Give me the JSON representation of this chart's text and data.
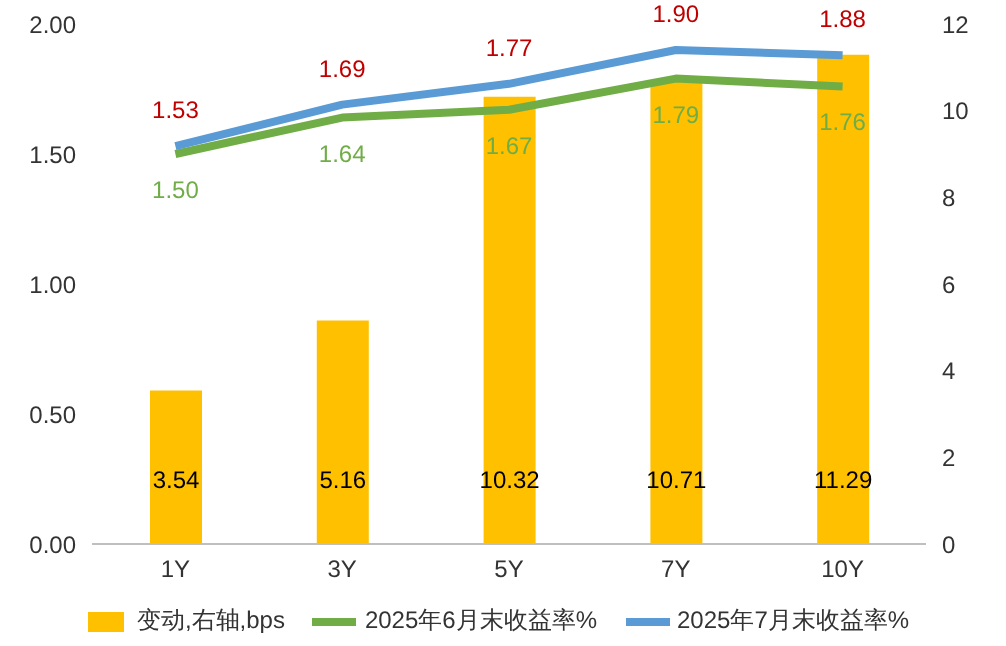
{
  "chart_data": {
    "type": "bar",
    "categories": [
      "1Y",
      "3Y",
      "5Y",
      "7Y",
      "10Y"
    ],
    "series": [
      {
        "name": "变动,右轴,bps",
        "axis": "y2",
        "color": "#ffc000",
        "values": [
          3.54,
          5.16,
          10.32,
          10.71,
          11.29
        ]
      },
      {
        "name": "2025年6月末收益率%",
        "type": "line",
        "color": "#70ad47",
        "values": [
          1.5,
          1.64,
          1.67,
          1.79,
          1.76
        ],
        "value_labels": [
          "1.50",
          "1.64",
          "1.67",
          "1.79",
          "1.76"
        ]
      },
      {
        "name": "2025年7月末收益率%",
        "type": "line",
        "color": "#5b9bd5",
        "values": [
          1.53,
          1.69,
          1.77,
          1.9,
          1.88
        ],
        "value_labels": [
          "1.53",
          "1.69",
          "1.77",
          "1.90",
          "1.88"
        ]
      }
    ],
    "ylim": [
      0,
      2
    ],
    "yticks": [
      {
        "value": 0,
        "label": "0.00"
      },
      {
        "value": 0.5,
        "label": "0.50"
      },
      {
        "value": 1,
        "label": "1.00"
      },
      {
        "value": 1.5,
        "label": "1.50"
      },
      {
        "value": 2,
        "label": "2.00"
      }
    ],
    "y2lim": [
      0,
      12
    ],
    "y2ticks": [
      0,
      2,
      4,
      6,
      8,
      10,
      12
    ],
    "data_labels": true,
    "legend": "bottom",
    "grid": false,
    "marker": "none"
  }
}
